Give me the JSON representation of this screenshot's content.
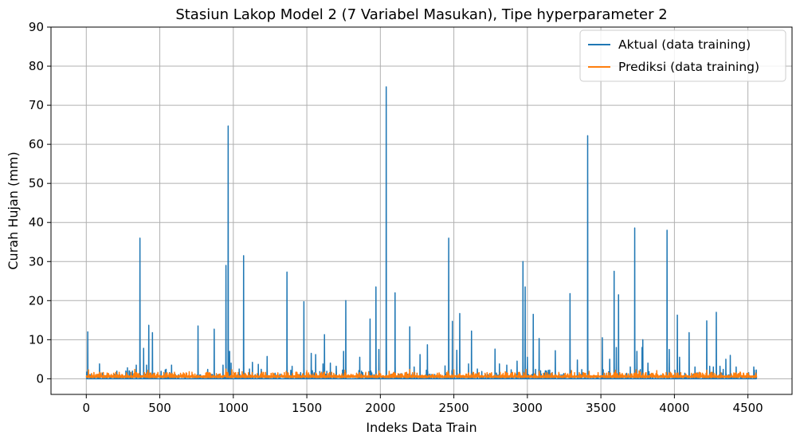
{
  "chart_data": {
    "type": "line",
    "title": "Stasiun Lakop Model 2 (7 Variabel Masukan), Tipe hyperparameter 2",
    "xlabel": "Indeks Data Train",
    "ylabel": "Curah Hujan (mm)",
    "xlim": [
      -240,
      4800
    ],
    "ylim": [
      -4,
      90
    ],
    "xticks": [
      0,
      500,
      1000,
      1500,
      2000,
      2500,
      3000,
      3500,
      4000,
      4500
    ],
    "yticks": [
      0,
      10,
      20,
      30,
      40,
      50,
      60,
      70,
      80,
      90
    ],
    "grid": true,
    "legend_position": "top-right",
    "n_points": 4560,
    "colors": {
      "aktual": "#1f77b4",
      "prediksi": "#ff7f0e"
    },
    "series": [
      {
        "name": "Aktual (data training)",
        "color": "#1f77b4",
        "baseline": 0,
        "spikes": [
          [
            10,
            12
          ],
          [
            90,
            3.8
          ],
          [
            280,
            2.8
          ],
          [
            340,
            3.5
          ],
          [
            365,
            36
          ],
          [
            390,
            7.8
          ],
          [
            410,
            3.5
          ],
          [
            425,
            13.7
          ],
          [
            450,
            11.8
          ],
          [
            580,
            3.5
          ],
          [
            760,
            13.5
          ],
          [
            870,
            12.7
          ],
          [
            930,
            3.5
          ],
          [
            950,
            29
          ],
          [
            965,
            64.7
          ],
          [
            975,
            7
          ],
          [
            985,
            4
          ],
          [
            1040,
            2.5
          ],
          [
            1070,
            31.5
          ],
          [
            1110,
            2.5
          ],
          [
            1130,
            4.2
          ],
          [
            1170,
            3.7
          ],
          [
            1230,
            5.7
          ],
          [
            1365,
            27.3
          ],
          [
            1400,
            3.2
          ],
          [
            1480,
            19.7
          ],
          [
            1530,
            6.5
          ],
          [
            1560,
            6.2
          ],
          [
            1610,
            3.8
          ],
          [
            1620,
            11.3
          ],
          [
            1660,
            4
          ],
          [
            1700,
            3.2
          ],
          [
            1750,
            7
          ],
          [
            1765,
            20
          ],
          [
            1860,
            5.5
          ],
          [
            1930,
            15.3
          ],
          [
            1970,
            23.5
          ],
          [
            1990,
            7.5
          ],
          [
            2040,
            74.7
          ],
          [
            2100,
            22
          ],
          [
            2200,
            13.3
          ],
          [
            2230,
            3
          ],
          [
            2270,
            6.2
          ],
          [
            2320,
            8.7
          ],
          [
            2440,
            3.3
          ],
          [
            2465,
            36
          ],
          [
            2490,
            14.7
          ],
          [
            2520,
            7.3
          ],
          [
            2540,
            16.7
          ],
          [
            2600,
            3.8
          ],
          [
            2620,
            12.2
          ],
          [
            2660,
            2.5
          ],
          [
            2780,
            7.6
          ],
          [
            2810,
            3.8
          ],
          [
            2860,
            3.5
          ],
          [
            2890,
            2.3
          ],
          [
            2930,
            4.5
          ],
          [
            2970,
            30
          ],
          [
            2985,
            23.5
          ],
          [
            3000,
            5.5
          ],
          [
            3040,
            16.5
          ],
          [
            3080,
            10.3
          ],
          [
            3130,
            2
          ],
          [
            3190,
            7.2
          ],
          [
            3290,
            21.8
          ],
          [
            3340,
            4.8
          ],
          [
            3410,
            62.2
          ],
          [
            3510,
            10.5
          ],
          [
            3560,
            5
          ],
          [
            3590,
            27.5
          ],
          [
            3605,
            8
          ],
          [
            3620,
            21.5
          ],
          [
            3700,
            3
          ],
          [
            3730,
            38.6
          ],
          [
            3745,
            7
          ],
          [
            3780,
            8
          ],
          [
            3785,
            10
          ],
          [
            3820,
            4
          ],
          [
            3950,
            38
          ],
          [
            3965,
            7.5
          ],
          [
            4020,
            16.3
          ],
          [
            4035,
            5.5
          ],
          [
            4100,
            11.8
          ],
          [
            4140,
            3
          ],
          [
            4160,
            1.5
          ],
          [
            4220,
            14.8
          ],
          [
            4240,
            3.2
          ],
          [
            4265,
            3
          ],
          [
            4285,
            17
          ],
          [
            4310,
            3.2
          ],
          [
            4350,
            5
          ],
          [
            4380,
            6
          ],
          [
            4420,
            3
          ],
          [
            4540,
            3
          ]
        ]
      },
      {
        "name": "Prediksi (data training)",
        "color": "#ff7f0e",
        "baseline": 0.3,
        "spikes": [
          [
            15,
            2.3
          ],
          [
            200,
            1.6
          ],
          [
            330,
            2.4
          ],
          [
            420,
            2.2
          ],
          [
            700,
            1.8
          ],
          [
            820,
            1.6
          ],
          [
            950,
            2.5
          ],
          [
            990,
            2.3
          ],
          [
            1060,
            1.8
          ],
          [
            1360,
            1.9
          ],
          [
            1500,
            2.1
          ],
          [
            1620,
            1.7
          ],
          [
            1760,
            2.2
          ],
          [
            1990,
            2.0
          ],
          [
            2060,
            1.9
          ],
          [
            2200,
            2.4
          ],
          [
            2460,
            2.0
          ],
          [
            2500,
            2.3
          ],
          [
            2850,
            1.8
          ],
          [
            2990,
            2.4
          ],
          [
            3080,
            1.9
          ],
          [
            3300,
            2.1
          ],
          [
            3420,
            1.9
          ],
          [
            3600,
            2.2
          ],
          [
            3740,
            2.3
          ],
          [
            3760,
            2.0
          ],
          [
            3880,
            2.1
          ],
          [
            4220,
            2.2
          ],
          [
            4420,
            1.5
          ]
        ]
      }
    ]
  }
}
